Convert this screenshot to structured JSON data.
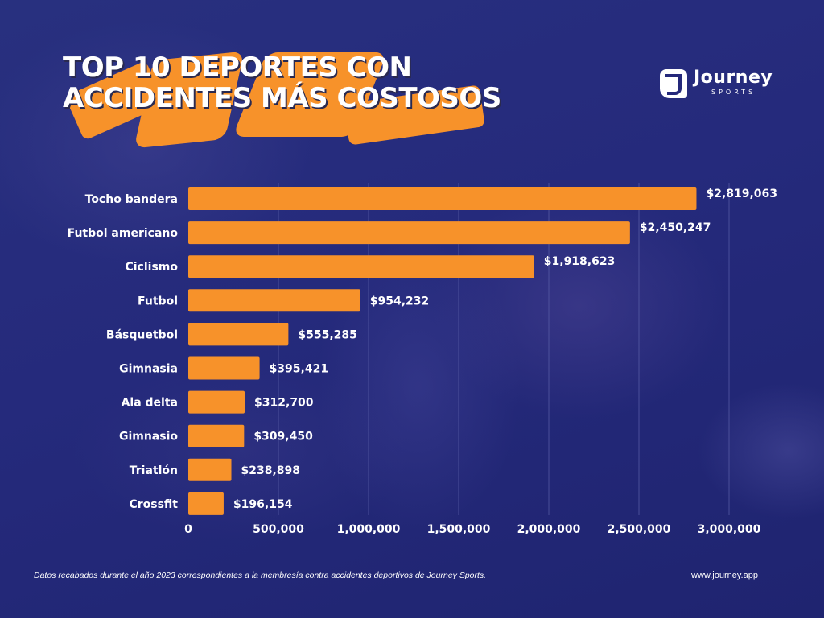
{
  "header": {
    "title_line1": "TOP 10 DEPORTES CON",
    "title_line2": "ACCIDENTES MÁS COSTOSOS"
  },
  "logo": {
    "name": "Journey",
    "sub": "SPORTS",
    "icon": "j-logo-icon"
  },
  "colors": {
    "background": "#24287a",
    "bar": "#f7922a",
    "text": "#ffffff",
    "gridline": "#5a5fa8"
  },
  "chart_data": {
    "type": "bar",
    "orientation": "horizontal",
    "title": "TOP 10 DEPORTES CON ACCIDENTES MÁS COSTOSOS",
    "xlabel": "",
    "ylabel": "",
    "categories": [
      "Tocho bandera",
      "Futbol americano",
      "Ciclismo",
      "Futbol",
      "Básquetbol",
      "Gimnasia",
      "Ala delta",
      "Gimnasio",
      "Triatlón",
      "Crossfit"
    ],
    "values": [
      2819063,
      2450247,
      1918623,
      954232,
      555285,
      395421,
      312700,
      309450,
      238898,
      196154
    ],
    "data_labels": [
      "$2,819,063",
      "$2,450,247",
      "$1,918,623",
      "$954,232",
      "$555,285",
      "$395,421",
      "$312,700",
      "$309,450",
      "$238,898",
      "$196,154"
    ],
    "xlim": [
      0,
      3000000
    ],
    "xticks": [
      0,
      500000,
      1000000,
      1500000,
      2000000,
      2500000,
      3000000
    ],
    "xtick_labels": [
      "0",
      "500,000",
      "1,000,000",
      "1,500,000",
      "2,000,000",
      "2,500,000",
      "3,000,000"
    ],
    "grid": "vertical",
    "legend": "none"
  },
  "footer": {
    "note": "Datos recabados durante el año 2023 correspondientes a la membresía contra accidentes deportivos de Journey Sports.",
    "url": "www.journey.app"
  }
}
